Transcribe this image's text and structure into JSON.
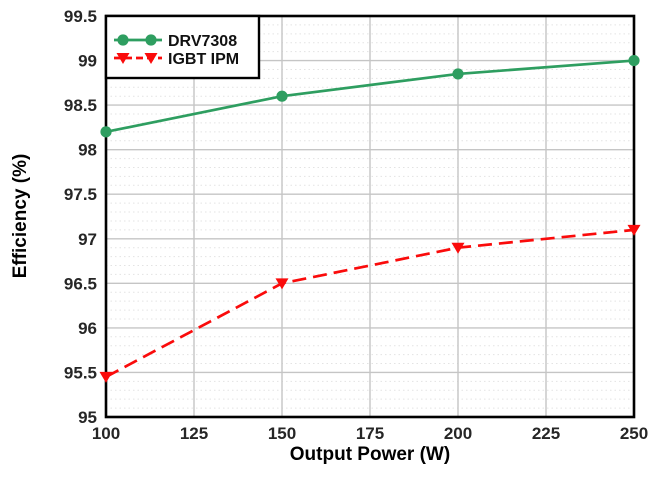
{
  "chart_data": {
    "type": "line",
    "title": "",
    "xlabel": "Output Power (W)",
    "ylabel": "Efficiency (%)",
    "x": [
      100,
      150,
      200,
      250
    ],
    "series": [
      {
        "name": "DRV7308",
        "color": "#2E9E60",
        "line_style": "solid",
        "marker": "circle",
        "values": [
          98.2,
          98.6,
          98.85,
          99.0
        ]
      },
      {
        "name": "IGBT IPM",
        "color": "#FA0B0B",
        "line_style": "dashed",
        "marker": "triangle-down",
        "values": [
          95.45,
          96.5,
          96.9,
          97.1
        ]
      }
    ],
    "xlim": [
      100,
      250
    ],
    "ylim": [
      95,
      99.5
    ],
    "x_ticks": [
      100,
      125,
      150,
      175,
      200,
      225,
      250
    ],
    "y_ticks": [
      95,
      95.5,
      96,
      96.5,
      97,
      97.5,
      98,
      98.5,
      99,
      99.5
    ],
    "y_minor_step": 0.1,
    "grid": "major-solid-both-axes, minor-dotted-horizontal",
    "legend_position": "top-left",
    "colors": {
      "grid_major": "#C5C5C5",
      "grid_minor": "#E3E3E3",
      "axis_border": "#000000",
      "tick_text": "#262626",
      "legend_border": "#000000",
      "legend_background": "#FFFFFF",
      "background": "#FFFFFF"
    }
  }
}
